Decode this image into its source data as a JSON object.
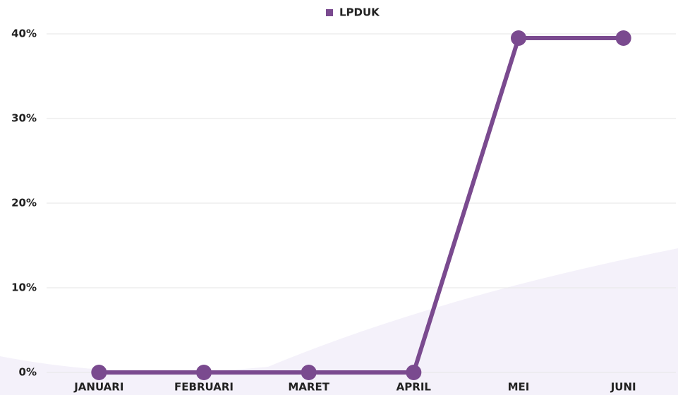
{
  "chart_data": {
    "type": "line",
    "categories": [
      "JANUARI",
      "FEBRUARI",
      "MARET",
      "APRIL",
      "MEI",
      "JUNI"
    ],
    "series": [
      {
        "name": "LPDUK",
        "color": "#7a4a8f",
        "values": [
          0,
          0,
          0,
          0,
          39.5,
          39.5
        ]
      }
    ],
    "ylim": [
      0,
      40
    ],
    "yticks": [
      {
        "value": 0,
        "label": "0%"
      },
      {
        "value": 10,
        "label": "10%"
      },
      {
        "value": 20,
        "label": "20%"
      },
      {
        "value": 30,
        "label": "30%"
      },
      {
        "value": 40,
        "label": "40%"
      }
    ],
    "grid": true,
    "legend": "top"
  }
}
